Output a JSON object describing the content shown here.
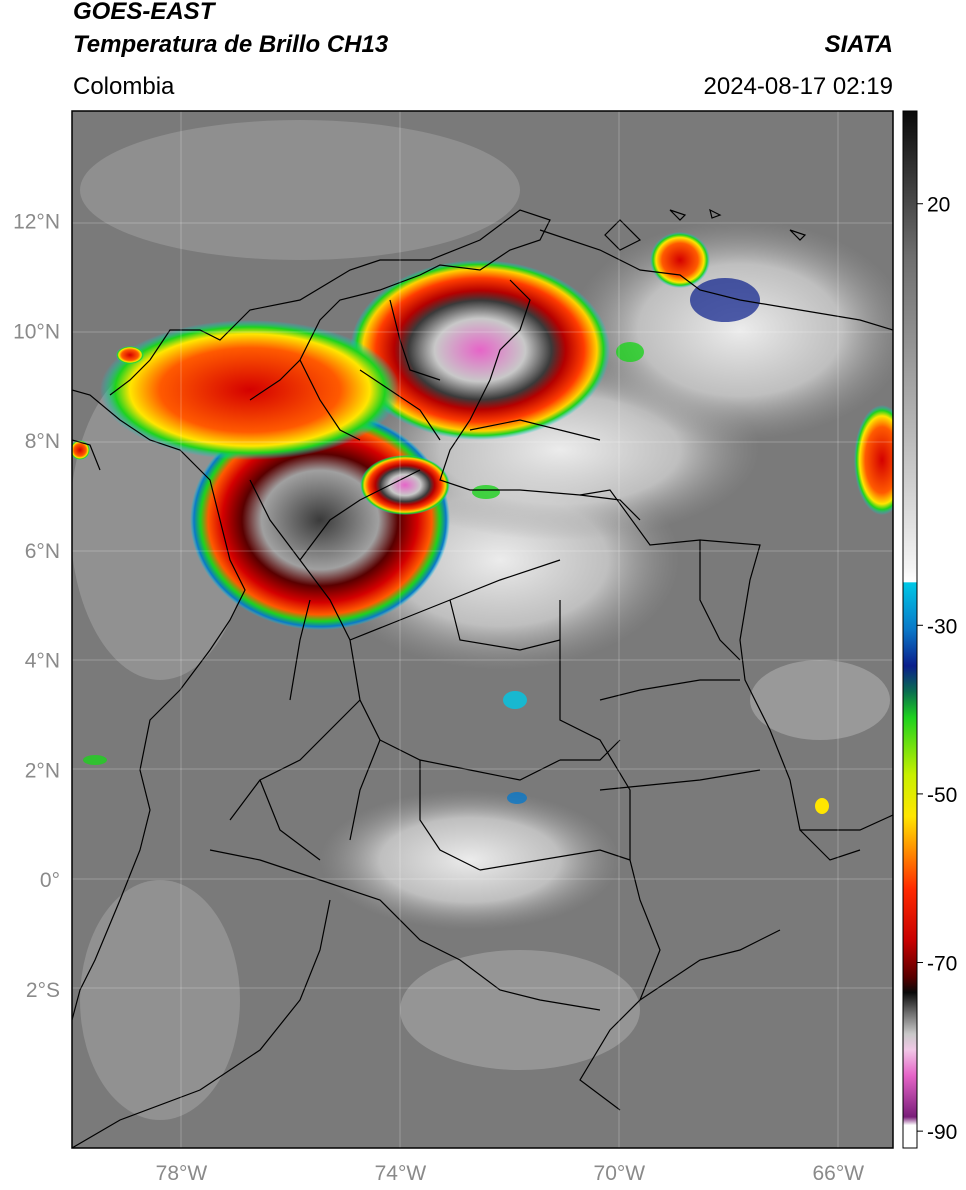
{
  "header": {
    "satellite": "GOES-EAST",
    "product": "Temperatura de Brillo CH13",
    "region": "Colombia",
    "agency": "SIATA",
    "datetime": "2024-08-17 02:19"
  },
  "map": {
    "lon_range": [
      -80,
      -65
    ],
    "lat_range": [
      -4.9,
      14
    ],
    "lat_ticks": [
      {
        "value": 12,
        "label": "12°N"
      },
      {
        "value": 10,
        "label": "10°N"
      },
      {
        "value": 8,
        "label": "8°N"
      },
      {
        "value": 6,
        "label": "6°N"
      },
      {
        "value": 4,
        "label": "4°N"
      },
      {
        "value": 2,
        "label": "2°N"
      },
      {
        "value": 0,
        "label": "0°"
      },
      {
        "value": -2,
        "label": "2°S"
      }
    ],
    "lon_ticks": [
      {
        "value": -78,
        "label": "78°W"
      },
      {
        "value": -74,
        "label": "74°W"
      },
      {
        "value": -70,
        "label": "70°W"
      },
      {
        "value": -66,
        "label": "66°W"
      }
    ],
    "grid": true
  },
  "colorbar": {
    "range": [
      -92,
      31
    ],
    "ticks": [
      {
        "value": 20,
        "label": "20"
      },
      {
        "value": -30,
        "label": "-30"
      },
      {
        "value": -50,
        "label": "-50"
      },
      {
        "value": -70,
        "label": "-70"
      },
      {
        "value": -90,
        "label": "-90"
      }
    ],
    "colors": {
      "warm_dark": "#1a1a1a",
      "gray": "#8c8c8c",
      "light": "#f2f2f2",
      "cyan": "#00c8e6",
      "blue": "#0a1e8c",
      "green": "#1ed21e",
      "yellow": "#ffe600",
      "red": "#e60000",
      "darkred": "#5a0000",
      "pink": "#e664c8",
      "purple": "#7a1e7a"
    }
  }
}
